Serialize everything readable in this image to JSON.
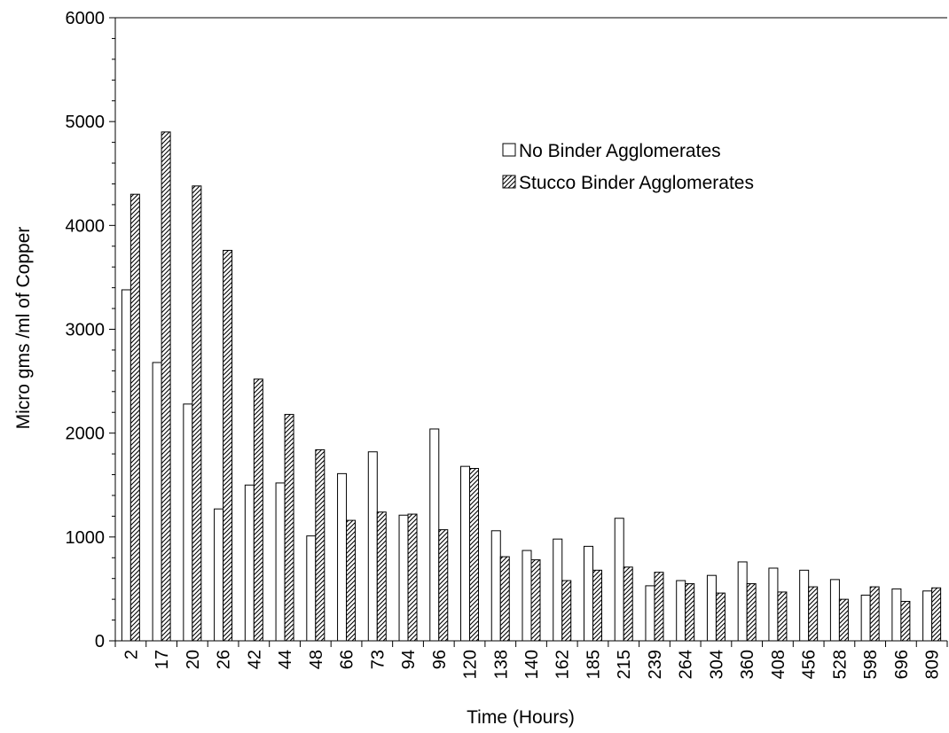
{
  "chart_data": {
    "type": "bar",
    "title": "",
    "xlabel": "Time (Hours)",
    "ylabel": "Micro gms /ml of Copper",
    "ylim": [
      0,
      6000
    ],
    "yticks": [
      "0",
      "1000",
      "2000",
      "3000",
      "4000",
      "5000",
      "6000"
    ],
    "grid": false,
    "legend_position": "top-right",
    "categories": [
      "2",
      "17",
      "20",
      "26",
      "42",
      "44",
      "48",
      "66",
      "73",
      "94",
      "96",
      "120",
      "138",
      "140",
      "162",
      "185",
      "215",
      "239",
      "264",
      "304",
      "360",
      "408",
      "456",
      "528",
      "598",
      "696",
      "809"
    ],
    "series": [
      {
        "name": "No Binder Agglomerates",
        "fill": "white",
        "color": "#ffffff",
        "values": [
          3380,
          2680,
          2280,
          1270,
          1500,
          1520,
          1010,
          1610,
          1820,
          1210,
          2040,
          1680,
          1060,
          870,
          980,
          910,
          1180,
          530,
          580,
          630,
          760,
          700,
          680,
          590,
          440,
          500,
          480
        ]
      },
      {
        "name": "Stucco Binder Agglomerates",
        "fill": "diagonal-hatch",
        "color": "#000000",
        "values": [
          4300,
          4900,
          4380,
          3760,
          2520,
          2180,
          1840,
          1160,
          1240,
          1220,
          1070,
          1660,
          810,
          780,
          580,
          680,
          710,
          660,
          550,
          460,
          550,
          470,
          520,
          400,
          520,
          380,
          510
        ]
      }
    ]
  }
}
